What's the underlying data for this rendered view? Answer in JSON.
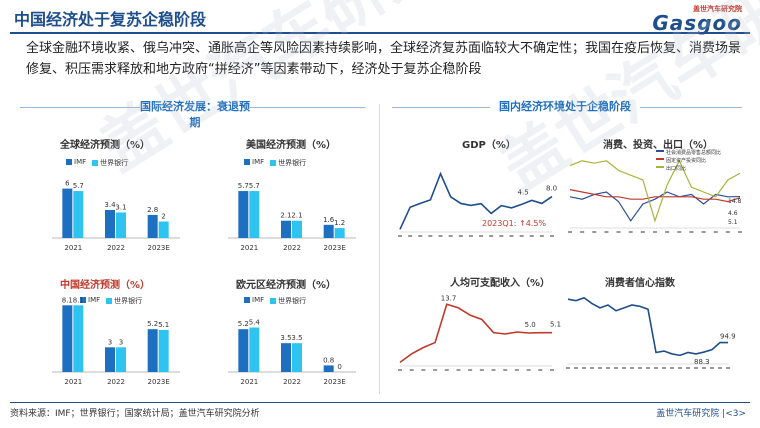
{
  "header": {
    "title": "中国经济处于复苏企稳阶段",
    "logo_cn": "盖世汽车研究院",
    "logo_en": "Gasgoo"
  },
  "intro": "全球金融环境收紧、俄乌冲突、通胀高企等风险因素持续影响，全球经济复苏面临较大不确定性；我国在疫后恢复、消费场景修复、积压需求释放和地方政府“拼经济”等因素带动下，经济处于复苏企稳阶段",
  "sections": {
    "left": "国际经济发展：衰退预期",
    "right": "国内经济环境处于企稳阶段"
  },
  "legend": {
    "imf": "IMF",
    "wb": "世界银行"
  },
  "colors": {
    "imf": "#1f6fc1",
    "wb": "#2fc3f0",
    "accent": "#1f4e8c",
    "red": "#c0392b"
  },
  "watermark": "盖世汽车研究院",
  "footer": {
    "source": "资料来源：IMF；世界银行；国家统计局；盖世汽车研究院分析",
    "right": "盖世汽车研究院 |<3>"
  },
  "chart_data": [
    {
      "type": "bar",
      "title": "全球经济预测（%）",
      "categories": [
        "2021",
        "2022",
        "2023E"
      ],
      "series": [
        {
          "name": "IMF",
          "values": [
            6,
            3.4,
            2.8
          ]
        },
        {
          "name": "世界银行",
          "values": [
            5.7,
            3.1,
            2.0
          ]
        }
      ]
    },
    {
      "type": "bar",
      "title": "美国经济预测（%）",
      "categories": [
        "2021",
        "2022",
        "2023E"
      ],
      "series": [
        {
          "name": "IMF",
          "values": [
            5.7,
            2.1,
            1.6
          ]
        },
        {
          "name": "世界银行",
          "values": [
            5.7,
            2.1,
            1.2
          ]
        }
      ]
    },
    {
      "type": "bar",
      "title": "中国经济预测（%）",
      "categories": [
        "2021",
        "2022",
        "2023E"
      ],
      "series": [
        {
          "name": "IMF",
          "values": [
            8.1,
            3.0,
            5.2
          ]
        },
        {
          "name": "世界银行",
          "values": [
            8.1,
            3.0,
            5.1
          ]
        }
      ]
    },
    {
      "type": "bar",
      "title": "欧元区经济预测（%）",
      "categories": [
        "2021",
        "2022",
        "2023E"
      ],
      "series": [
        {
          "name": "IMF",
          "values": [
            5.2,
            3.5,
            0.8
          ]
        },
        {
          "name": "世界银行",
          "values": [
            5.4,
            3.5,
            0.0
          ]
        }
      ]
    },
    {
      "type": "line",
      "title": "GDP（%）",
      "annotation": "2023Q1: ↑4.5%",
      "values": [
        -6.8,
        3.2,
        4.9,
        6.5,
        18.3,
        7.9,
        4.9,
        4.0,
        4.8,
        0.4,
        3.9,
        2.9,
        4.5,
        6.3,
        4.9,
        8.0
      ],
      "labels": {
        "v1": "4.5",
        "v2": "8.0"
      }
    },
    {
      "type": "line",
      "title": "消费、投资、出口（%）",
      "legend": [
        "社会消费品零售总额同比",
        "固定资产投资同比",
        "出口同比"
      ],
      "series": [
        {
          "name": "社会消费品零售总额同比",
          "values": [
            5,
            4,
            6,
            7,
            3,
            -5,
            2,
            4,
            7,
            5,
            6,
            2,
            6,
            5,
            5.1
          ]
        },
        {
          "name": "固定资产投资同比",
          "values": [
            8,
            7,
            6,
            5,
            5,
            4,
            4,
            5,
            5,
            5,
            5,
            4,
            4,
            3,
            4.6
          ]
        },
        {
          "name": "出口同比",
          "values": [
            18,
            20,
            19,
            20,
            16,
            14,
            12,
            -5,
            10,
            20,
            9,
            7,
            5,
            12,
            14.8
          ]
        }
      ],
      "labels": {
        "a": "14.8",
        "b": "4.6",
        "c": "5.1"
      }
    },
    {
      "type": "line",
      "title": "人均可支配收入（%）",
      "values": [
        -3.9,
        -1.3,
        0.6,
        2.1,
        13.7,
        12.6,
        10.4,
        9.1,
        5.1,
        4.7,
        5.3,
        5.0,
        5.1,
        5.1
      ],
      "labels": {
        "peak": "13.7",
        "v1": "5.0",
        "v2": "5.1"
      }
    },
    {
      "type": "line",
      "title": "消费者信心指数",
      "values": [
        125,
        124,
        126,
        122,
        119,
        121,
        117,
        119,
        121,
        120,
        118,
        88,
        89,
        87,
        86,
        88,
        87,
        88.3,
        90,
        94.9,
        94.9
      ],
      "labels": {
        "v1": "88.3",
        "v2": "94.9"
      }
    }
  ]
}
